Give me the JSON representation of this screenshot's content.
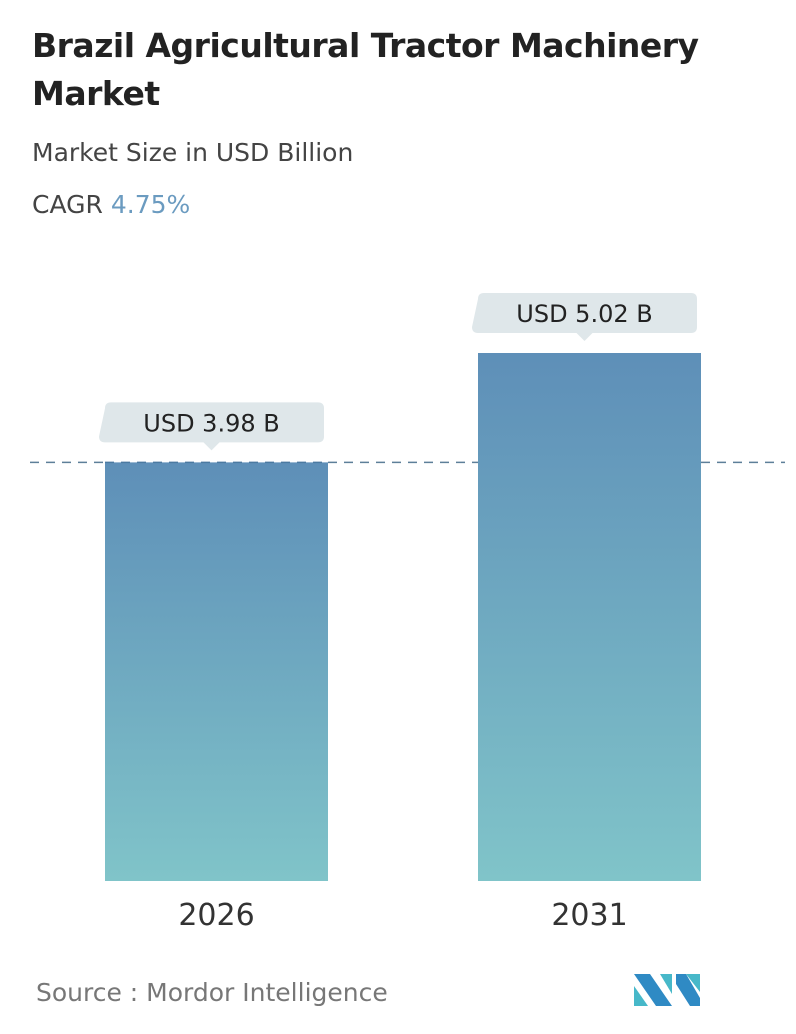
{
  "title": "Brazil Agricultural Tractor Machinery Market",
  "subtitle": "Market Size in USD Billion",
  "cagr_label": "CAGR",
  "cagr_value": "4.75%",
  "source": "Source :  Mordor Intelligence",
  "colors": {
    "bar_top": "#5e8fb8",
    "bar_bottom": "#80c4c9",
    "callout": "#dfe7ea",
    "cagr": "#6b9bc0"
  },
  "chart_data": {
    "type": "bar",
    "categories": [
      "2026",
      "2031"
    ],
    "values": [
      3.98,
      5.02
    ],
    "data_labels": [
      "USD 3.98 B",
      "USD 5.02 B"
    ],
    "ylim": [
      0,
      5.02
    ],
    "grid": false,
    "reference_line": 3.98
  }
}
